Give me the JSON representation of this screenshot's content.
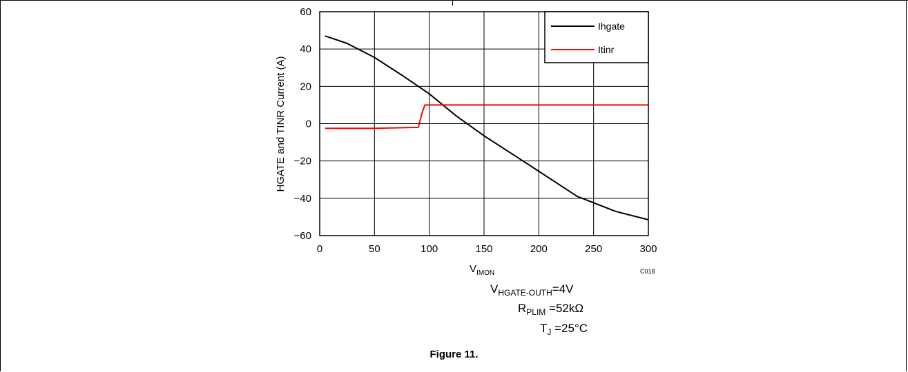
{
  "chart_data": {
    "type": "line",
    "title": "",
    "xlabel": {
      "main": "V",
      "sub": "IMON"
    },
    "ylabel": "HGATE and TINR Current (A)",
    "xlim": [
      0,
      300
    ],
    "ylim": [
      -60,
      60
    ],
    "x_ticks": [
      "0",
      "50",
      "100",
      "150",
      "200",
      "250",
      "300"
    ],
    "y_ticks": [
      "60",
      "40",
      "20",
      "0",
      "−20",
      "−40",
      "−60"
    ],
    "grid": true,
    "legend_position": "top-right",
    "plot_code": "C018",
    "series": [
      {
        "name": "Ihgate",
        "color": "#000000",
        "x": [
          5,
          25,
          50,
          75,
          100,
          125,
          150,
          175,
          200,
          235,
          270,
          300
        ],
        "y": [
          47,
          43,
          35.5,
          26,
          16,
          4,
          -6.5,
          -16,
          -25.5,
          -39,
          -47,
          -51.5
        ]
      },
      {
        "name": "Itinr",
        "color": "#ff0000",
        "x": [
          5,
          50,
          90,
          93,
          96,
          150,
          200,
          250,
          300
        ],
        "y": [
          -2.5,
          -2.5,
          -2,
          5,
          10,
          10,
          10,
          10,
          10
        ]
      }
    ]
  },
  "conditions": [
    {
      "main": "V",
      "sub": "HGATE-OUTH",
      "value": "=4V"
    },
    {
      "main": "R",
      "sub": "PLIM",
      "value": " =52kΩ"
    },
    {
      "main": "T",
      "sub": "J",
      "value": " =25°C"
    }
  ],
  "figure_caption": "Figure 11."
}
